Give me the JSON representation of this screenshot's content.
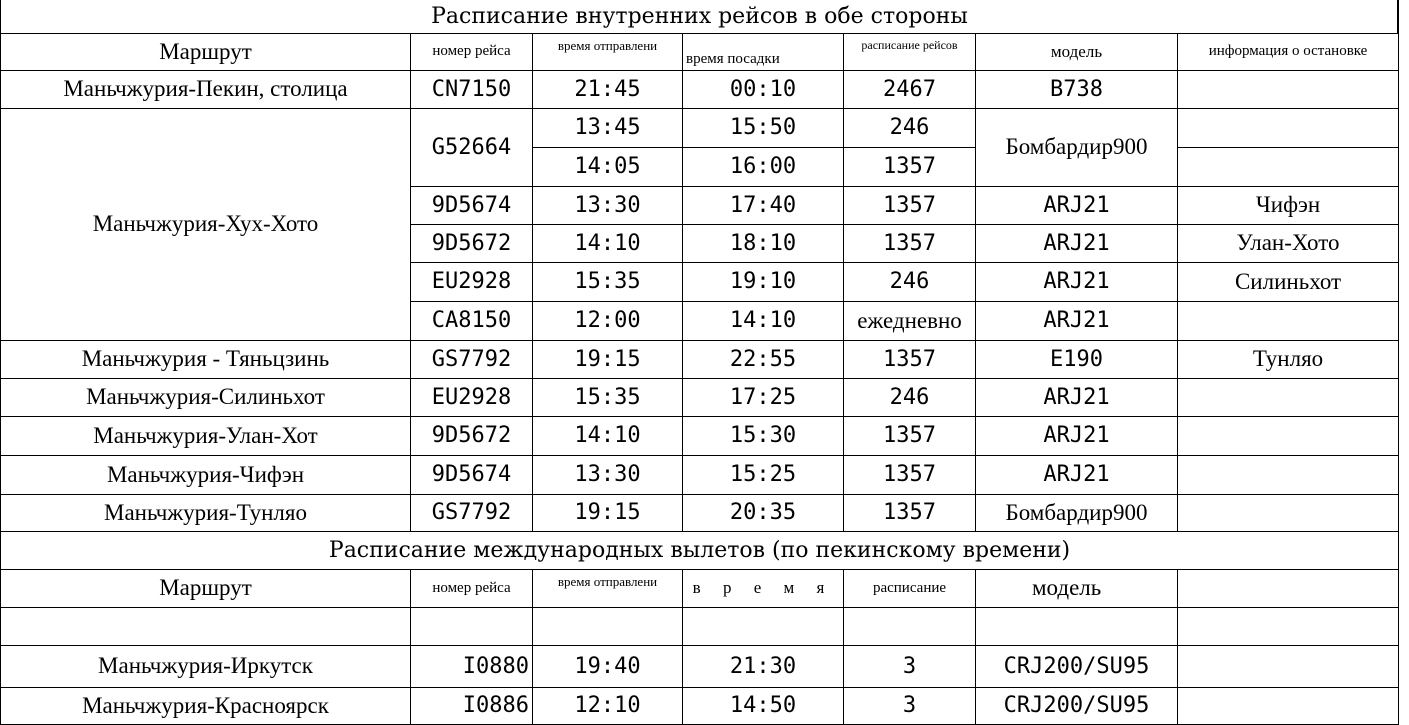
{
  "domestic": {
    "title": "Расписание внутренних рейсов в обе стороны",
    "headers": {
      "route": "Маршрут",
      "flight": "номер рейса",
      "departure": "время отправлени",
      "arrival": "время посадки",
      "schedule": "расписание рейсов",
      "model": "модель",
      "stop": "информация о остановке"
    },
    "routes": [
      "Маньчжурия-Пекин, столица",
      "Маньчжурия-Хух-Хото",
      "Маньчжурия - Тяньцзинь",
      "Маньчжурия-Силиньхот",
      "Маньчжурия-Улан-Хот",
      "Маньчжурия-Чифэн",
      "Маньчжурия-Тунляо"
    ],
    "rows": [
      {
        "flight": "CN7150",
        "dep": "21:45",
        "arr": "00:10",
        "sched": "2467",
        "model": "B738",
        "stop": ""
      },
      {
        "flight": "G52664",
        "dep": "13:45",
        "arr": "15:50",
        "sched": "246",
        "model": "Бомбардир900",
        "stop": ""
      },
      {
        "flight": "",
        "dep": "14:05",
        "arr": "16:00",
        "sched": "1357",
        "model": "",
        "stop": ""
      },
      {
        "flight": "9D5674",
        "dep": "13:30",
        "arr": "17:40",
        "sched": "1357",
        "model": "ARJ21",
        "stop": "Чифэн"
      },
      {
        "flight": "9D5672",
        "dep": "14:10",
        "arr": "18:10",
        "sched": "1357",
        "model": "ARJ21",
        "stop": "Улан-Хото"
      },
      {
        "flight": "EU2928",
        "dep": "15:35",
        "arr": "19:10",
        "sched": "246",
        "model": "ARJ21",
        "stop": "Силиньхот"
      },
      {
        "flight": "CA8150",
        "dep": "12:00",
        "arr": "14:10",
        "sched": "ежедневно",
        "model": "ARJ21",
        "stop": ""
      },
      {
        "flight": "GS7792",
        "dep": "19:15",
        "arr": "22:55",
        "sched": "1357",
        "model": "E190",
        "stop": "Тунляо"
      },
      {
        "flight": "EU2928",
        "dep": "15:35",
        "arr": "17:25",
        "sched": "246",
        "model": "ARJ21",
        "stop": ""
      },
      {
        "flight": "9D5672",
        "dep": "14:10",
        "arr": "15:30",
        "sched": "1357",
        "model": "ARJ21",
        "stop": ""
      },
      {
        "flight": "9D5674",
        "dep": "13:30",
        "arr": "15:25",
        "sched": "1357",
        "model": "ARJ21",
        "stop": ""
      },
      {
        "flight": "GS7792",
        "dep": "19:15",
        "arr": "20:35",
        "sched": "1357",
        "model": "Бомбардир900",
        "stop": ""
      }
    ]
  },
  "international": {
    "title": "Расписание международных вылетов (по пекинскому времени)",
    "headers": {
      "route": "Маршрут",
      "flight": "номер рейса",
      "departure": "время отправлени",
      "time": "в р е м я",
      "schedule": "расписание",
      "model": "модель"
    },
    "rows": [
      {
        "route": "Маньчжурия-Иркутск",
        "flight": "I0880",
        "dep": "19:40",
        "arr": "21:30",
        "sched": "3",
        "model": "CRJ200/SU95"
      },
      {
        "route": "Маньчжурия-Красноярск",
        "flight": "I0886",
        "dep": "12:10",
        "arr": "14:50",
        "sched": "3",
        "model": "CRJ200/SU95"
      }
    ]
  }
}
